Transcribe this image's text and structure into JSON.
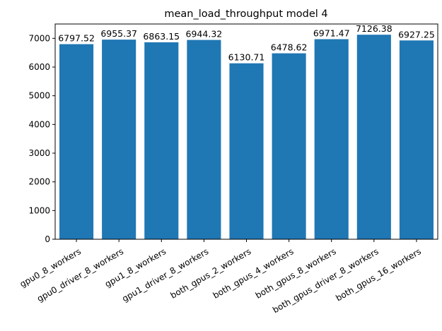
{
  "chart_data": {
    "type": "bar",
    "title": "mean_load_throughput model 4",
    "xlabel": "",
    "ylabel": "",
    "categories": [
      "gpu0_8_workers",
      "gpu0_driver_8_workers",
      "gpu1_8_workers",
      "gpu1_driver_8_workers",
      "both_gpus_2_workers",
      "both_gpus_4_workers",
      "both_gpus_8_workers",
      "both_gpus_driver_8_workers",
      "both_gpus_16_workers"
    ],
    "values": [
      6797.52,
      6955.37,
      6863.15,
      6944.32,
      6130.71,
      6478.62,
      6971.47,
      7126.38,
      6927.25
    ],
    "data_labels": [
      "6797.52",
      "6955.37",
      "6863.15",
      "6944.32",
      "6130.71",
      "6478.62",
      "6971.47",
      "7126.38",
      "6927.25"
    ],
    "yticks": [
      0,
      1000,
      2000,
      3000,
      4000,
      5000,
      6000,
      7000
    ],
    "ylim": [
      0,
      7500
    ],
    "bar_color": "#1f77b4",
    "grid": false
  }
}
